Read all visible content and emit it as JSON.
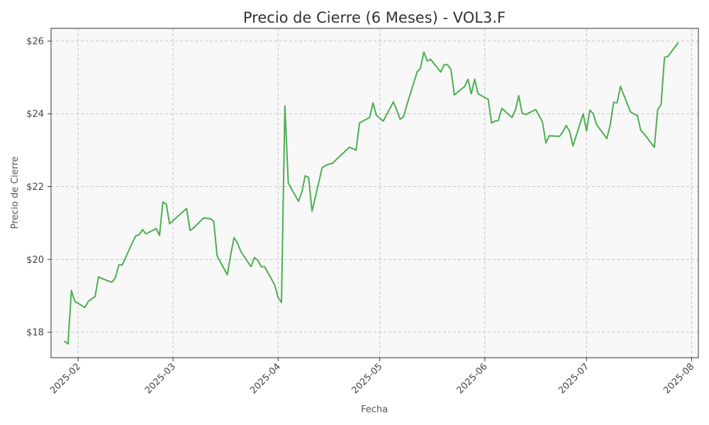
{
  "chart_data": {
    "type": "line",
    "title": "Precio de Cierre (6 Meses) - VOL3.F",
    "xlabel": "Fecha",
    "ylabel": "Precio de Cierre",
    "ylim": [
      17.3,
      26.35
    ],
    "xlim": [
      "2025-01-24",
      "2025-08-03"
    ],
    "grid": true,
    "colors": {
      "line": "#4caf50",
      "plot_background": "#f8f8f8",
      "frame": "#333333",
      "grid": "#c4c4c4"
    },
    "y_ticks": [
      {
        "value": 18,
        "label": "$18"
      },
      {
        "value": 20,
        "label": "$20"
      },
      {
        "value": 22,
        "label": "$22"
      },
      {
        "value": 24,
        "label": "$24"
      },
      {
        "value": 26,
        "label": "$26"
      }
    ],
    "x_ticks": [
      {
        "value": "2025-02-01",
        "label": "2025-02"
      },
      {
        "value": "2025-03-01",
        "label": "2025-03"
      },
      {
        "value": "2025-04-01",
        "label": "2025-04"
      },
      {
        "value": "2025-05-01",
        "label": "2025-05"
      },
      {
        "value": "2025-06-01",
        "label": "2025-06"
      },
      {
        "value": "2025-07-01",
        "label": "2025-07"
      },
      {
        "value": "2025-08-01",
        "label": "2025-08"
      }
    ],
    "series": [
      {
        "x": [
          "2025-01-28",
          "2025-01-29",
          "2025-01-30",
          "2025-01-31",
          "2025-02-03",
          "2025-02-04",
          "2025-02-05",
          "2025-02-06",
          "2025-02-07",
          "2025-02-10",
          "2025-02-11",
          "2025-02-12",
          "2025-02-13",
          "2025-02-14",
          "2025-02-17",
          "2025-02-18",
          "2025-02-19",
          "2025-02-20",
          "2025-02-21",
          "2025-02-24",
          "2025-02-25",
          "2025-02-26",
          "2025-02-27",
          "2025-02-28",
          "2025-03-05",
          "2025-03-06",
          "2025-03-07",
          "2025-03-10",
          "2025-03-11",
          "2025-03-12",
          "2025-03-13",
          "2025-03-14",
          "2025-03-17",
          "2025-03-18",
          "2025-03-19",
          "2025-03-20",
          "2025-03-21",
          "2025-03-24",
          "2025-03-25",
          "2025-03-26",
          "2025-03-27",
          "2025-03-28",
          "2025-03-31",
          "2025-04-01",
          "2025-04-02",
          "2025-04-03",
          "2025-04-04",
          "2025-04-07",
          "2025-04-08",
          "2025-04-09",
          "2025-04-10",
          "2025-04-11",
          "2025-04-14",
          "2025-04-15",
          "2025-04-16",
          "2025-04-17",
          "2025-04-22",
          "2025-04-23",
          "2025-04-24",
          "2025-04-25",
          "2025-04-28",
          "2025-04-29",
          "2025-04-30",
          "2025-05-02",
          "2025-05-05",
          "2025-05-06",
          "2025-05-07",
          "2025-05-08",
          "2025-05-09",
          "2025-05-12",
          "2025-05-13",
          "2025-05-14",
          "2025-05-15",
          "2025-05-16",
          "2025-05-19",
          "2025-05-20",
          "2025-05-21",
          "2025-05-22",
          "2025-05-23",
          "2025-05-26",
          "2025-05-27",
          "2025-05-28",
          "2025-05-29",
          "2025-05-30",
          "2025-06-02",
          "2025-06-03",
          "2025-06-04",
          "2025-06-05",
          "2025-06-06",
          "2025-06-09",
          "2025-06-10",
          "2025-06-11",
          "2025-06-12",
          "2025-06-13",
          "2025-06-16",
          "2025-06-17",
          "2025-06-18",
          "2025-06-19",
          "2025-06-20",
          "2025-06-23",
          "2025-06-24",
          "2025-06-25",
          "2025-06-26",
          "2025-06-27",
          "2025-06-30",
          "2025-07-01",
          "2025-07-02",
          "2025-07-03",
          "2025-07-04",
          "2025-07-07",
          "2025-07-08",
          "2025-07-09",
          "2025-07-10",
          "2025-07-11",
          "2025-07-14",
          "2025-07-15",
          "2025-07-16",
          "2025-07-17",
          "2025-07-18",
          "2025-07-21",
          "2025-07-22",
          "2025-07-23",
          "2025-07-24",
          "2025-07-25",
          "2025-07-28"
        ],
        "values": [
          17.75,
          17.68,
          19.15,
          18.85,
          18.68,
          18.85,
          18.92,
          18.98,
          19.52,
          19.4,
          19.38,
          19.5,
          19.85,
          19.85,
          20.46,
          20.65,
          20.68,
          20.82,
          20.7,
          20.85,
          20.66,
          21.58,
          21.52,
          20.98,
          21.4,
          20.8,
          20.86,
          21.14,
          21.13,
          21.12,
          21.05,
          20.1,
          19.58,
          20.12,
          20.6,
          20.45,
          20.22,
          19.8,
          20.05,
          19.98,
          19.8,
          19.8,
          19.3,
          18.95,
          18.82,
          24.22,
          22.1,
          21.6,
          21.85,
          22.3,
          22.25,
          21.32,
          22.52,
          22.58,
          22.62,
          22.64,
          23.08,
          23.05,
          23.0,
          23.75,
          23.9,
          24.3,
          23.96,
          23.8,
          24.33,
          24.1,
          23.85,
          23.92,
          24.25,
          25.15,
          25.25,
          25.7,
          25.45,
          25.5,
          25.15,
          25.35,
          25.35,
          25.22,
          24.52,
          24.75,
          24.95,
          24.55,
          24.95,
          24.55,
          24.4,
          23.75,
          23.8,
          23.82,
          24.15,
          23.9,
          24.1,
          24.5,
          24.02,
          23.98,
          24.12,
          23.95,
          23.78,
          23.2,
          23.4,
          23.38,
          23.5,
          23.68,
          23.52,
          23.12,
          24.0,
          23.53,
          24.1,
          24.0,
          23.7,
          23.32,
          23.7,
          24.32,
          24.3,
          24.75,
          24.05,
          24.0,
          23.95,
          23.55,
          23.45,
          23.08,
          24.12,
          24.25,
          25.55,
          25.58,
          25.95
        ]
      }
    ]
  }
}
